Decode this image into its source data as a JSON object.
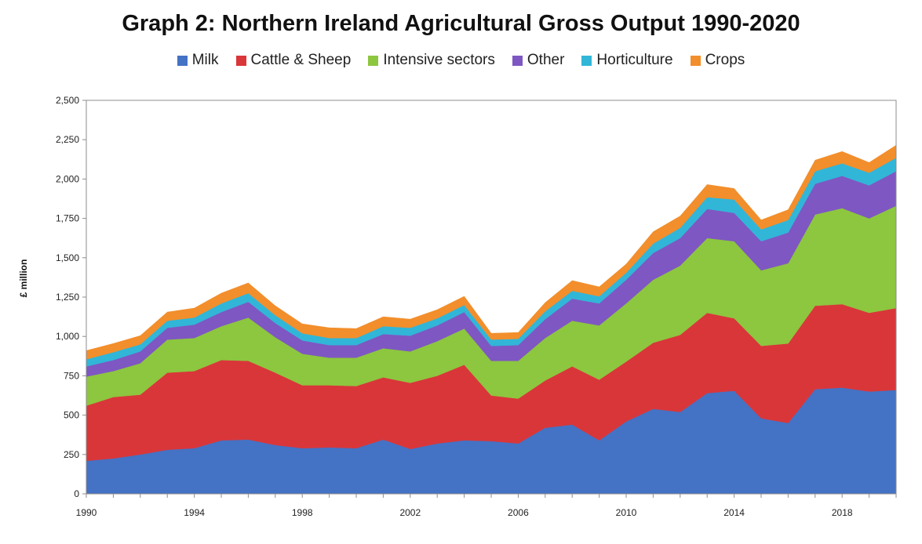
{
  "chart_data": {
    "type": "area",
    "stacked": true,
    "title": "Graph 2: Northern Ireland Agricultural Gross Output 1990-2020",
    "xlabel": "",
    "ylabel": "£ million",
    "ylim": [
      0,
      2500
    ],
    "y_ticks": [
      "0",
      "250",
      "500",
      "750",
      "1,000",
      "1,250",
      "1,500",
      "1,750",
      "2,000",
      "2,250",
      "2,500"
    ],
    "y_tick_values": [
      0,
      250,
      500,
      750,
      1000,
      1250,
      1500,
      1750,
      2000,
      2250,
      2500
    ],
    "x_ticks": [
      "1990",
      "1994",
      "1998",
      "2002",
      "2006",
      "2010",
      "2014",
      "2018"
    ],
    "x_tick_values": [
      1990,
      1994,
      1998,
      2002,
      2006,
      2010,
      2014,
      2018
    ],
    "legend_position": "top",
    "grid": false,
    "x": [
      1990,
      1991,
      1992,
      1993,
      1994,
      1995,
      1996,
      1997,
      1998,
      1999,
      2000,
      2001,
      2002,
      2003,
      2004,
      2005,
      2006,
      2007,
      2008,
      2009,
      2010,
      2011,
      2012,
      2013,
      2014,
      2015,
      2016,
      2017,
      2018,
      2019,
      2020
    ],
    "series": [
      {
        "name": "Milk",
        "color": "#4472C4",
        "values": [
          210,
          225,
          250,
          280,
          290,
          340,
          345,
          310,
          290,
          295,
          290,
          345,
          285,
          320,
          340,
          335,
          320,
          420,
          440,
          340,
          460,
          540,
          520,
          640,
          655,
          480,
          450,
          665,
          675,
          650,
          660
        ]
      },
      {
        "name": "Cattle & Sheep",
        "color": "#D9363A",
        "values": [
          350,
          390,
          380,
          490,
          490,
          510,
          500,
          460,
          400,
          395,
          395,
          395,
          420,
          430,
          480,
          290,
          285,
          300,
          370,
          385,
          380,
          420,
          490,
          510,
          460,
          460,
          505,
          530,
          530,
          500,
          520
        ]
      },
      {
        "name": "Intensive sectors",
        "color": "#8DC63F",
        "values": [
          185,
          165,
          200,
          210,
          210,
          215,
          275,
          225,
          200,
          175,
          180,
          185,
          200,
          220,
          230,
          220,
          240,
          270,
          290,
          345,
          370,
          400,
          440,
          475,
          490,
          480,
          510,
          580,
          610,
          600,
          650
        ]
      },
      {
        "name": "Other",
        "color": "#7E57C2",
        "values": [
          65,
          70,
          75,
          75,
          85,
          90,
          100,
          90,
          85,
          80,
          80,
          90,
          100,
          100,
          105,
          95,
          100,
          120,
          140,
          140,
          150,
          170,
          175,
          185,
          180,
          185,
          195,
          195,
          205,
          210,
          220
        ]
      },
      {
        "name": "Horticulture",
        "color": "#31B6D8",
        "values": [
          45,
          50,
          45,
          45,
          45,
          55,
          55,
          50,
          45,
          45,
          45,
          50,
          50,
          45,
          45,
          40,
          40,
          50,
          50,
          45,
          45,
          60,
          65,
          75,
          85,
          75,
          80,
          80,
          80,
          80,
          85
        ]
      },
      {
        "name": "Crops",
        "color": "#F28E2B",
        "values": [
          55,
          55,
          55,
          55,
          60,
          65,
          65,
          60,
          60,
          65,
          60,
          60,
          55,
          55,
          55,
          40,
          40,
          55,
          65,
          60,
          55,
          75,
          75,
          80,
          70,
          60,
          65,
          70,
          75,
          65,
          80
        ]
      }
    ]
  }
}
